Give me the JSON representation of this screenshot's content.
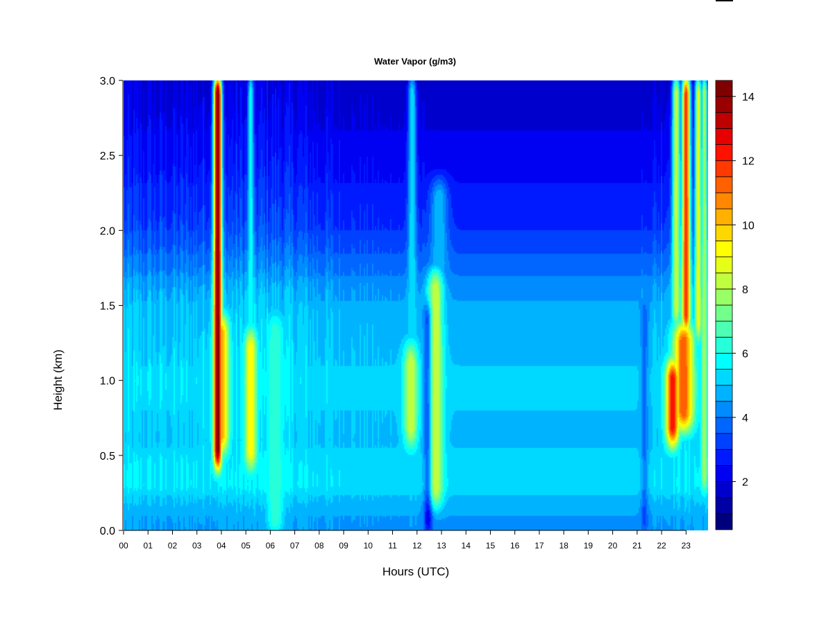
{
  "chart_data": {
    "type": "heatmap",
    "title": "Water Vapor (g/m3)",
    "xlabel": "Hours (UTC)",
    "ylabel": "Height (km)",
    "xlim": [
      0,
      23.9
    ],
    "ylim": [
      0.0,
      3.0
    ],
    "x_ticks": [
      0,
      1,
      2,
      3,
      4,
      5,
      6,
      7,
      8,
      9,
      10,
      11,
      12,
      13,
      14,
      15,
      16,
      17,
      18,
      19,
      20,
      21,
      22,
      23
    ],
    "x_tick_labels": [
      "00",
      "01",
      "02",
      "03",
      "04",
      "05",
      "06",
      "07",
      "08",
      "09",
      "10",
      "11",
      "12",
      "13",
      "14",
      "15",
      "16",
      "17",
      "18",
      "19",
      "20",
      "21",
      "22",
      "23"
    ],
    "y_ticks": [
      0.0,
      0.5,
      1.0,
      1.5,
      2.0,
      2.5,
      3.0
    ],
    "y_tick_labels": [
      "0.0",
      "0.5",
      "1.0",
      "1.5",
      "2.0",
      "2.5",
      "3.0"
    ],
    "colorbar": {
      "range": [
        0.5,
        14.5
      ],
      "levels": 28,
      "ticks": [
        2,
        4,
        6,
        8,
        10,
        12,
        14
      ],
      "tick_labels": [
        "2",
        "4",
        "6",
        "8",
        "10",
        "12",
        "14"
      ],
      "colors": [
        "#00007f",
        "#0000a6",
        "#0000cc",
        "#0000f2",
        "#001aff",
        "#0040ff",
        "#0066ff",
        "#008cff",
        "#00b3ff",
        "#00d9ff",
        "#00ffff",
        "#26ffd9",
        "#4dffb3",
        "#73ff8c",
        "#99ff66",
        "#bfff40",
        "#e6ff19",
        "#ffff00",
        "#ffd700",
        "#ffb000",
        "#ff8800",
        "#ff6000",
        "#ff3900",
        "#ff1100",
        "#e60000",
        "#bf0000",
        "#990000",
        "#7f0000"
      ]
    },
    "background_profile": {
      "heights_km": [
        0.0,
        0.15,
        0.3,
        0.45,
        0.6,
        0.8,
        1.0,
        1.2,
        1.4,
        1.6,
        1.75,
        2.0,
        2.5,
        3.0
      ],
      "values": [
        4.3,
        4.6,
        5.3,
        5.2,
        4.9,
        5.0,
        5.1,
        4.9,
        4.7,
        4.4,
        3.8,
        3.0,
        2.2,
        1.6
      ]
    },
    "hourly_offset": {
      "hours": [
        0,
        2,
        4,
        6,
        8,
        10,
        12,
        13,
        14,
        15,
        16,
        18,
        20,
        21,
        22,
        23.9
      ],
      "values": [
        0.3,
        0.2,
        0.4,
        0.5,
        0.2,
        -0.2,
        -0.1,
        -0.6,
        -1.2,
        -1.4,
        -1.2,
        -1.0,
        -0.9,
        -0.4,
        0.3,
        0.5
      ]
    },
    "moist_features": [
      {
        "hour": 3.85,
        "width_h": 0.12,
        "z_from_km": 0.45,
        "z_to_km": 3.0,
        "peak": 14.5
      },
      {
        "hour": 4.0,
        "width_h": 0.22,
        "z_from_km": 0.55,
        "z_to_km": 1.4,
        "peak": 10.5
      },
      {
        "hour": 5.2,
        "width_h": 0.18,
        "z_from_km": 0.45,
        "z_to_km": 1.3,
        "peak": 9.5
      },
      {
        "hour": 5.2,
        "width_h": 0.09,
        "z_from_km": 1.3,
        "z_to_km": 3.0,
        "peak": 6.0
      },
      {
        "hour": 6.2,
        "width_h": 0.25,
        "z_from_km": 0.0,
        "z_to_km": 1.4,
        "peak": 6.5
      },
      {
        "hour": 11.75,
        "width_h": 0.2,
        "z_from_km": 0.6,
        "z_to_km": 1.2,
        "peak": 8.5
      },
      {
        "hour": 11.8,
        "width_h": 0.12,
        "z_from_km": 1.2,
        "z_to_km": 3.0,
        "peak": 5.5
      },
      {
        "hour": 12.75,
        "width_h": 0.22,
        "z_from_km": 0.2,
        "z_to_km": 1.7,
        "peak": 8.5
      },
      {
        "hour": 12.9,
        "width_h": 0.25,
        "z_from_km": 1.7,
        "z_to_km": 2.3,
        "peak": 5.0
      },
      {
        "hour": 22.45,
        "width_h": 0.2,
        "z_from_km": 0.6,
        "z_to_km": 1.1,
        "peak": 12.5
      },
      {
        "hour": 22.9,
        "width_h": 0.3,
        "z_from_km": 0.7,
        "z_to_km": 1.35,
        "peak": 11.5
      },
      {
        "hour": 23.0,
        "width_h": 0.13,
        "z_from_km": 1.35,
        "z_to_km": 3.0,
        "peak": 12.0
      },
      {
        "hour": 22.6,
        "width_h": 0.12,
        "z_from_km": 1.4,
        "z_to_km": 3.0,
        "peak": 8.5
      },
      {
        "hour": 23.5,
        "width_h": 0.1,
        "z_from_km": 1.3,
        "z_to_km": 3.0,
        "peak": 9.0
      },
      {
        "hour": 23.75,
        "width_h": 0.1,
        "z_from_km": 0.3,
        "z_to_km": 3.0,
        "peak": 8.0
      }
    ],
    "dry_gaps": [
      {
        "hour": 12.45,
        "width_h": 0.12,
        "z_from_km": 0.0,
        "z_to_km": 1.5,
        "depth": 2.5
      },
      {
        "hour": 21.3,
        "width_h": 0.1,
        "z_from_km": 0.0,
        "z_to_km": 1.5,
        "depth": 1.2
      }
    ]
  }
}
